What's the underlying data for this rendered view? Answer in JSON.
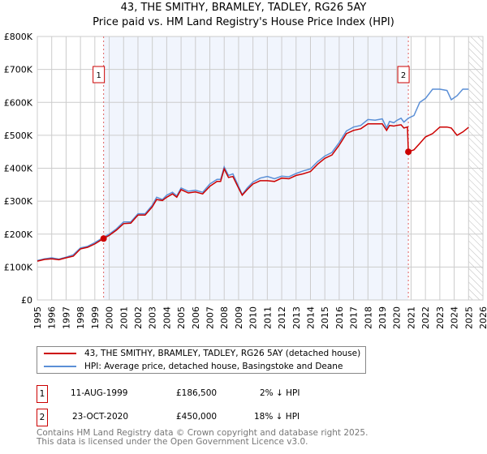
{
  "chart_data": {
    "type": "line",
    "title": "43, THE SMITHY, BRAMLEY, TADLEY, RG26 5AY",
    "subtitle": "Price paid vs. HM Land Registry's House Price Index (HPI)",
    "xlim": [
      1995,
      2026
    ],
    "ylim": [
      0,
      800000
    ],
    "x_ticks": [
      "1995",
      "1996",
      "1997",
      "1998",
      "1999",
      "2000",
      "2001",
      "2002",
      "2003",
      "2004",
      "2005",
      "2006",
      "2007",
      "2008",
      "2009",
      "2010",
      "2011",
      "2012",
      "2013",
      "2014",
      "2015",
      "2016",
      "2017",
      "2018",
      "2019",
      "2020",
      "2021",
      "2022",
      "2023",
      "2024",
      "2025",
      "2026"
    ],
    "y_ticks": [
      {
        "v": 0,
        "label": "£0"
      },
      {
        "v": 100000,
        "label": "£100K"
      },
      {
        "v": 200000,
        "label": "£200K"
      },
      {
        "v": 300000,
        "label": "£300K"
      },
      {
        "v": 400000,
        "label": "£400K"
      },
      {
        "v": 500000,
        "label": "£500K"
      },
      {
        "v": 600000,
        "label": "£600K"
      },
      {
        "v": 700000,
        "label": "£700K"
      },
      {
        "v": 800000,
        "label": "£800K"
      }
    ],
    "grid": true,
    "shaded_range": [
      1999.61,
      2020.81
    ],
    "forecast_hatch_from": 2025.0,
    "series": [
      {
        "name": "43, THE SMITHY, BRAMLEY, TADLEY, RG26 5AY (detached house)",
        "color": "#cc0000",
        "x": [
          1995,
          1995.5,
          1996,
          1996.5,
          1997,
          1997.5,
          1998,
          1998.5,
          1999,
          1999.61,
          2000,
          2000.5,
          2001,
          2001.5,
          2002,
          2002.5,
          2003,
          2003.3,
          2003.7,
          2004,
          2004.4,
          2004.7,
          2005,
          2005.5,
          2006,
          2006.5,
          2007,
          2007.5,
          2007.75,
          2008,
          2008.3,
          2008.6,
          2009,
          2009.25,
          2009.6,
          2010,
          2010.5,
          2011,
          2011.5,
          2012,
          2012.5,
          2013,
          2013.5,
          2014,
          2014.5,
          2015,
          2015.5,
          2016,
          2016.5,
          2017,
          2017.5,
          2018,
          2018.5,
          2019,
          2019.3,
          2019.5,
          2019.8,
          2020,
          2020.3,
          2020.5,
          2020.75,
          2020.81,
          2021.2,
          2021.6,
          2022,
          2022.5,
          2023,
          2023.5,
          2023.8,
          2024.2,
          2024.6,
          2025
        ],
        "y": [
          118000,
          123000,
          125000,
          122000,
          128000,
          133000,
          155000,
          160000,
          170000,
          186500,
          196000,
          212000,
          232000,
          233000,
          258000,
          258000,
          283000,
          305000,
          302000,
          312000,
          322000,
          312000,
          335000,
          325000,
          328000,
          322000,
          345000,
          360000,
          360000,
          398000,
          372000,
          375000,
          340000,
          318000,
          335000,
          352000,
          362000,
          362000,
          360000,
          370000,
          368000,
          378000,
          383000,
          390000,
          412000,
          430000,
          440000,
          470000,
          505000,
          515000,
          520000,
          535000,
          535000,
          535000,
          515000,
          530000,
          528000,
          530000,
          532000,
          522000,
          525000,
          450000,
          456000,
          475000,
          495000,
          505000,
          525000,
          525000,
          522000,
          500000,
          510000,
          524000
        ]
      },
      {
        "name": "HPI: Average price, detached house, Basingstoke and Deane",
        "color": "#5b8fd6",
        "x": [
          1995,
          1995.5,
          1996,
          1996.5,
          1997,
          1997.5,
          1998,
          1998.5,
          1999,
          1999.61,
          2000,
          2000.5,
          2001,
          2001.5,
          2002,
          2002.5,
          2003,
          2003.3,
          2003.7,
          2004,
          2004.4,
          2004.7,
          2005,
          2005.5,
          2006,
          2006.5,
          2007,
          2007.5,
          2007.75,
          2008,
          2008.3,
          2008.6,
          2009,
          2009.25,
          2009.6,
          2010,
          2010.5,
          2011,
          2011.5,
          2012,
          2012.5,
          2013,
          2013.5,
          2014,
          2014.5,
          2015,
          2015.5,
          2016,
          2016.5,
          2017,
          2017.5,
          2018,
          2018.5,
          2019,
          2019.3,
          2019.5,
          2019.8,
          2020,
          2020.3,
          2020.5,
          2020.81,
          2021.2,
          2021.6,
          2022,
          2022.5,
          2023,
          2023.5,
          2023.8,
          2024.2,
          2024.6,
          2025
        ],
        "y": [
          120000,
          125000,
          128000,
          124000,
          130000,
          137000,
          158000,
          163000,
          174000,
          190000,
          200000,
          216000,
          237000,
          237000,
          262000,
          262000,
          288000,
          312000,
          305000,
          318000,
          327000,
          316000,
          340000,
          330000,
          333000,
          327000,
          352000,
          366000,
          366000,
          404000,
          378000,
          383000,
          345000,
          320000,
          340000,
          358000,
          370000,
          375000,
          368000,
          376000,
          374000,
          384000,
          392000,
          398000,
          420000,
          437000,
          448000,
          478000,
          513000,
          525000,
          530000,
          548000,
          546000,
          550000,
          522000,
          542000,
          538000,
          545000,
          552000,
          540000,
          552000,
          560000,
          600000,
          612000,
          640000,
          640000,
          636000,
          608000,
          620000,
          640000,
          640000
        ]
      }
    ],
    "sales": [
      {
        "label": "1",
        "x": 1999.61,
        "y": 186500
      },
      {
        "label": "2",
        "x": 2020.81,
        "y": 450000
      }
    ]
  },
  "legend": {
    "property": "43, THE SMITHY, BRAMLEY, TADLEY, RG26 5AY (detached house)",
    "hpi": "HPI: Average price, detached house, Basingstoke and Deane"
  },
  "transactions": [
    {
      "num": "1",
      "date": "11-AUG-1999",
      "price": "£186,500",
      "hpi": "2% ↓ HPI"
    },
    {
      "num": "2",
      "date": "23-OCT-2020",
      "price": "£450,000",
      "hpi": "18% ↓ HPI"
    }
  ],
  "footer": {
    "line1": "Contains HM Land Registry data © Crown copyright and database right 2025.",
    "line2": "This data is licensed under the Open Government Licence v3.0."
  }
}
